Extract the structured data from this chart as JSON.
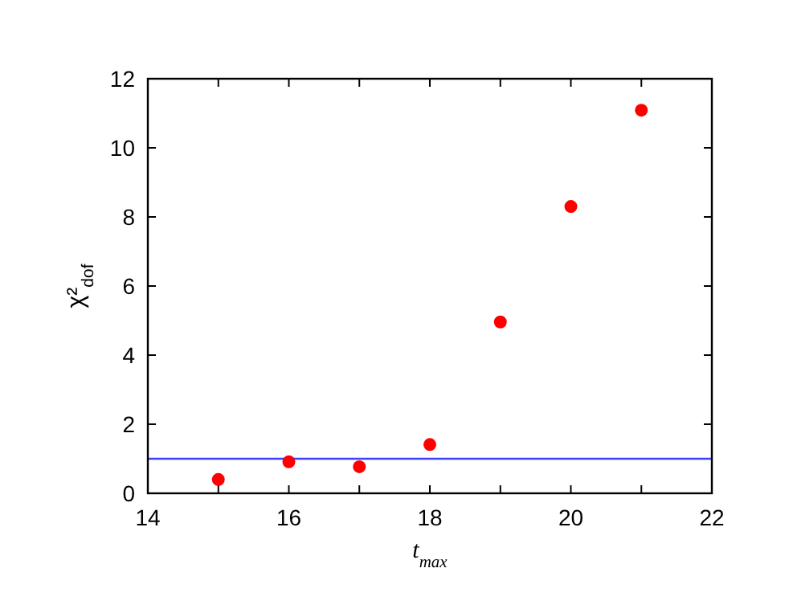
{
  "chart_data": {
    "type": "scatter",
    "xlabel": "t$_{max}$",
    "ylabel": "χ²$_{dof}$",
    "x": [
      15,
      16,
      17,
      18,
      19,
      20,
      21
    ],
    "series": [
      {
        "color": "#ff0000",
        "values": [
          0.4,
          0.91,
          0.77,
          1.41,
          4.96,
          8.3,
          11.09
        ]
      }
    ],
    "xlim": [
      14,
      22
    ],
    "ylim": [
      0,
      12
    ],
    "xticks": [
      14,
      {
        "value": 15,
        "label": null
      },
      16,
      {
        "value": 17,
        "label": null
      },
      18,
      {
        "value": 19,
        "label": null
      },
      20,
      {
        "value": 21,
        "label": null
      },
      22
    ],
    "yticks": [
      0,
      2,
      4,
      6,
      8,
      10,
      12
    ],
    "ref_lines": [
      {
        "axis": "y",
        "value": 1,
        "color": "#4040ff"
      }
    ],
    "marker": "circle",
    "grid": false
  }
}
